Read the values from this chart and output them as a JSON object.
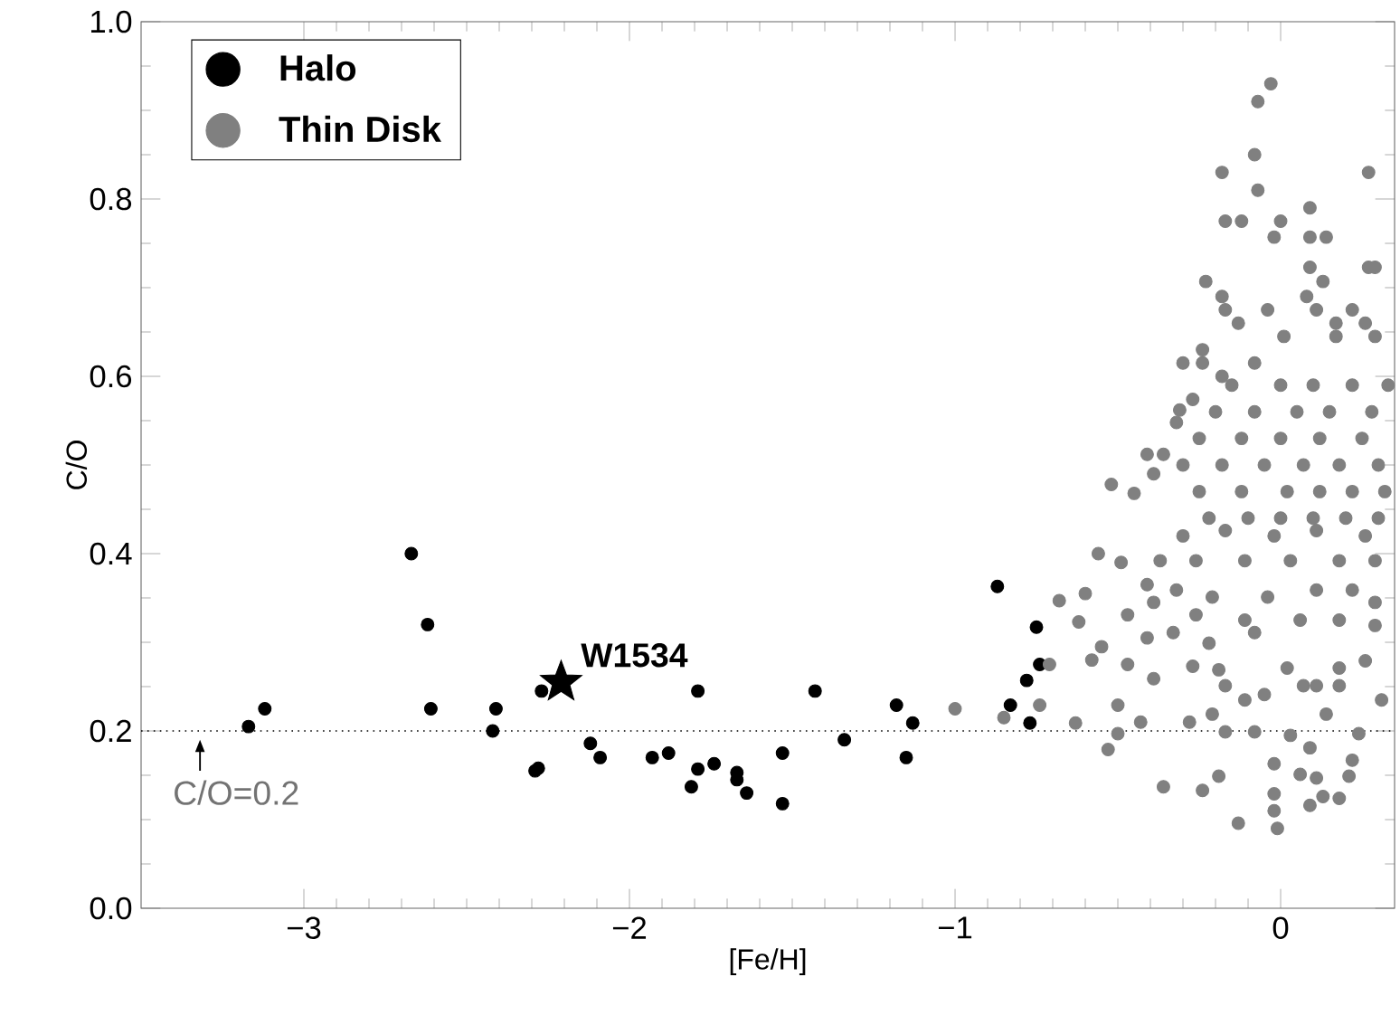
{
  "chart_data": {
    "type": "scatter",
    "xlabel": "[Fe/H]",
    "ylabel": "C/O",
    "xlim": [
      -3.5,
      0.35
    ],
    "ylim": [
      0,
      1.0
    ],
    "xticks": [
      {
        "value": -3,
        "label": "−3"
      },
      {
        "value": -2,
        "label": "−2"
      },
      {
        "value": -1,
        "label": "−1"
      },
      0
    ],
    "yticks": [
      {
        "value": 0,
        "label": "0.0"
      },
      {
        "value": 0.2,
        "label": "0.2"
      },
      {
        "value": 0.4,
        "label": "0.4"
      },
      {
        "value": 0.6,
        "label": "0.6"
      },
      {
        "value": 0.8,
        "label": "0.8"
      },
      {
        "value": 1.0,
        "label": "1.0"
      }
    ],
    "legend": "top left",
    "grid": false,
    "series": [
      {
        "name": "Halo",
        "color": "#000000",
        "marker": "circle",
        "x": [
          -3.17,
          -3.12,
          -2.67,
          -2.62,
          -2.61,
          -2.41,
          -2.42,
          -2.27,
          -2.29,
          -2.28,
          -2.12,
          -2.09,
          -1.93,
          -1.88,
          -1.79,
          -1.79,
          -1.81,
          -1.74,
          -1.67,
          -1.67,
          -1.64,
          -1.53,
          -1.53,
          -1.43,
          -1.34,
          -1.18,
          -1.13,
          -1.15,
          -0.87,
          -0.75,
          -0.74,
          -0.78,
          -0.83,
          -0.77
        ],
        "values": [
          0.205,
          0.225,
          0.4,
          0.32,
          0.225,
          0.225,
          0.2,
          0.245,
          0.155,
          0.158,
          0.186,
          0.17,
          0.17,
          0.175,
          0.245,
          0.157,
          0.137,
          0.163,
          0.145,
          0.153,
          0.13,
          0.175,
          0.118,
          0.245,
          0.19,
          0.229,
          0.209,
          0.17,
          0.363,
          0.317,
          0.275,
          0.257,
          0.229,
          0.209
        ]
      },
      {
        "name": "Thin Disk",
        "color": "#808080",
        "marker": "circle",
        "x": [
          -1.0,
          -0.85,
          -0.74,
          -0.71,
          -0.63,
          -0.68,
          -0.62,
          -0.6,
          -0.56,
          -0.49,
          -0.52,
          -0.45,
          -0.55,
          -0.58,
          -0.5,
          -0.5,
          -0.53,
          -0.43,
          -0.28,
          -0.21,
          -0.36,
          -0.24,
          -0.19,
          -0.13,
          -0.02,
          -0.02,
          -0.02,
          -0.01,
          0.09,
          0.13,
          0.18,
          0.21,
          0.22,
          0.06,
          0.11,
          0.31,
          0.24,
          -0.17,
          -0.08,
          0.03,
          0.09,
          -0.17,
          -0.05,
          0.07,
          0.11,
          0.18,
          -0.11,
          0.14,
          -0.47,
          -0.39,
          -0.27,
          -0.19,
          0.02,
          0.18,
          0.26,
          0.29,
          -0.41,
          -0.33,
          -0.22,
          -0.08,
          -0.47,
          -0.39,
          -0.26,
          -0.11,
          0.06,
          0.18,
          -0.41,
          -0.32,
          -0.21,
          -0.04,
          0.11,
          0.22,
          0.29,
          -0.37,
          -0.26,
          -0.11,
          0.03,
          0.18,
          0.29,
          -0.3,
          -0.17,
          -0.02,
          0.11,
          0.26,
          -0.22,
          -0.1,
          0.0,
          0.1,
          0.2,
          0.3,
          -0.25,
          -0.12,
          0.02,
          0.12,
          0.22,
          0.32,
          -0.3,
          -0.18,
          -0.05,
          0.07,
          0.18,
          0.3,
          -0.25,
          -0.12,
          0.0,
          0.12,
          0.25,
          -0.2,
          -0.08,
          0.05,
          0.15,
          0.28,
          -0.15,
          0.0,
          0.1,
          0.22,
          0.33,
          -0.03,
          -0.07,
          -0.08,
          -0.18,
          0.27,
          -0.07,
          0.09,
          -0.17,
          -0.12,
          0.0,
          -0.02,
          0.09,
          0.14,
          0.09,
          0.27,
          0.29,
          -0.23,
          0.13,
          -0.18,
          0.08,
          -0.17,
          -0.04,
          0.11,
          0.22,
          -0.13,
          0.17,
          0.26,
          0.01,
          0.17,
          0.29,
          -0.24,
          -0.3,
          -0.24,
          -0.08,
          -0.18,
          -0.27,
          -0.31,
          -0.32,
          -0.41,
          -0.36,
          -0.39
        ],
        "values": [
          0.225,
          0.215,
          0.229,
          0.275,
          0.209,
          0.347,
          0.323,
          0.355,
          0.4,
          0.39,
          0.478,
          0.468,
          0.295,
          0.28,
          0.229,
          0.197,
          0.179,
          0.21,
          0.21,
          0.219,
          0.137,
          0.133,
          0.149,
          0.096,
          0.163,
          0.129,
          0.11,
          0.09,
          0.116,
          0.126,
          0.124,
          0.149,
          0.167,
          0.151,
          0.147,
          0.235,
          0.197,
          0.199,
          0.199,
          0.195,
          0.181,
          0.251,
          0.241,
          0.251,
          0.251,
          0.251,
          0.235,
          0.219,
          0.275,
          0.259,
          0.273,
          0.269,
          0.271,
          0.271,
          0.279,
          0.319,
          0.305,
          0.311,
          0.299,
          0.311,
          0.331,
          0.345,
          0.331,
          0.325,
          0.325,
          0.325,
          0.365,
          0.359,
          0.351,
          0.351,
          0.359,
          0.359,
          0.345,
          0.392,
          0.392,
          0.392,
          0.392,
          0.392,
          0.392,
          0.42,
          0.426,
          0.42,
          0.426,
          0.42,
          0.44,
          0.44,
          0.44,
          0.44,
          0.44,
          0.44,
          0.47,
          0.47,
          0.47,
          0.47,
          0.47,
          0.47,
          0.5,
          0.5,
          0.5,
          0.5,
          0.5,
          0.5,
          0.53,
          0.53,
          0.53,
          0.53,
          0.53,
          0.56,
          0.56,
          0.56,
          0.56,
          0.56,
          0.59,
          0.59,
          0.59,
          0.59,
          0.59,
          0.93,
          0.91,
          0.85,
          0.83,
          0.83,
          0.81,
          0.79,
          0.775,
          0.775,
          0.775,
          0.757,
          0.757,
          0.757,
          0.723,
          0.723,
          0.723,
          0.707,
          0.707,
          0.69,
          0.69,
          0.675,
          0.675,
          0.675,
          0.675,
          0.66,
          0.66,
          0.66,
          0.645,
          0.645,
          0.645,
          0.63,
          0.615,
          0.615,
          0.615,
          0.6,
          0.574,
          0.562,
          0.548,
          0.512,
          0.512,
          0.49
        ]
      },
      {
        "color": "#000000",
        "marker": "star",
        "x": [
          -2.21
        ],
        "values": [
          0.255
        ]
      }
    ],
    "ref_lines": [
      {
        "axis": "y",
        "value": 0.2,
        "label": "C/O=0.2",
        "line_style": "dotted",
        "color": "#000000"
      }
    ],
    "annotations": [
      {
        "text": "W1534",
        "x": -2.21,
        "y": 0.255
      }
    ]
  }
}
